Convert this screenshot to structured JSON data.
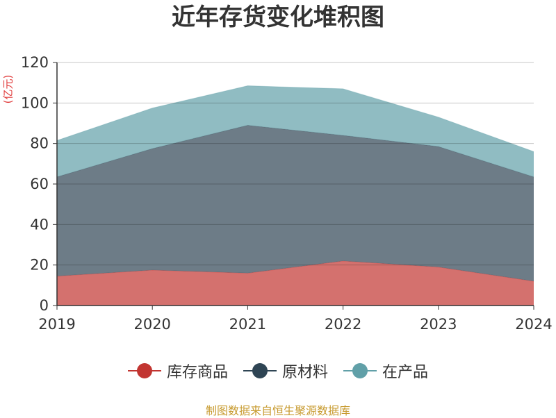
{
  "chart_data": {
    "type": "area",
    "stacked": true,
    "title": "近年存货变化堆积图",
    "ylabel": "(亿元)",
    "xlabel": "",
    "x": [
      "2019",
      "2020",
      "2021",
      "2022",
      "2023",
      "2024"
    ],
    "ylim": [
      0,
      120
    ],
    "yticks": [
      "0",
      "20",
      "40",
      "60",
      "80",
      "100",
      "120"
    ],
    "series": [
      {
        "name": "库存商品",
        "color": "#c23531",
        "values": [
          14.5,
          17.5,
          16,
          22,
          19,
          12
        ]
      },
      {
        "name": "原材料",
        "color": "#2f4554",
        "values": [
          49,
          60,
          73,
          62,
          59.5,
          51.5
        ]
      },
      {
        "name": "在产品",
        "color": "#61a0a8",
        "values": [
          18,
          20,
          19.5,
          23,
          14.5,
          12.5
        ]
      }
    ],
    "grid": true,
    "legend_position": "bottom"
  },
  "source": "制图数据来自恒生聚源数据库"
}
